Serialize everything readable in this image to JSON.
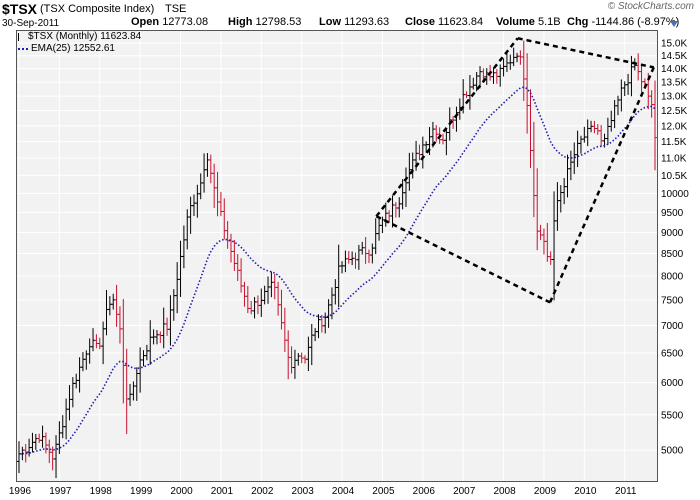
{
  "header": {
    "symbol": "$TSX",
    "name": "(TSX Composite Index)",
    "exchange": "TSE",
    "date": "30-Sep-2011",
    "brand": "© StockCharts.com",
    "open_label": "Open",
    "open": "12773.08",
    "high_label": "High",
    "high": "12798.53",
    "low_label": "Low",
    "low": "11293.63",
    "close_label": "Close",
    "close": "11623.84",
    "volume_label": "Volume",
    "volume": "5.1B",
    "chg_label": "Chg",
    "chg": "-1144.86 (-8.97%)"
  },
  "legend": {
    "price": "$TSX (Monthly) 11623.84",
    "ema": "EMA(25) 12552.61"
  },
  "colors": {
    "up": "#000000",
    "down": "#c8102e",
    "ema": "#1f1fae",
    "plot_bg": "#f2f2f2"
  },
  "chart_data": {
    "type": "ohlc",
    "scale": "log",
    "grid": true,
    "ylim": [
      4600,
      15500
    ],
    "ytick_labels": [
      "15.0K",
      "14.5K",
      "14.0K",
      "13.5K",
      "13.0K",
      "12.5K",
      "12.0K",
      "11.5K",
      "11.0K",
      "10.5K",
      "10000",
      "9500",
      "9000",
      "8500",
      "8000",
      "7500",
      "7000",
      "6500",
      "6000",
      "5500",
      "5000"
    ],
    "yticks": [
      15000,
      14500,
      14000,
      13500,
      13000,
      12500,
      12000,
      11500,
      11000,
      10500,
      10000,
      9500,
      9000,
      8500,
      8000,
      7500,
      7000,
      6500,
      6000,
      5500,
      5000
    ],
    "xticks": [
      "1996",
      "1997",
      "1998",
      "1999",
      "2000",
      "2001",
      "2002",
      "2003",
      "2004",
      "2005",
      "2006",
      "2007",
      "2008",
      "2009",
      "2010",
      "2011"
    ],
    "xrange": [
      1996.0,
      2011.75
    ],
    "anchors": [
      [
        1996.0,
        4950
      ],
      [
        1996.5,
        5200
      ],
      [
        1996.85,
        4900
      ],
      [
        1997.3,
        5900
      ],
      [
        1997.75,
        6700
      ],
      [
        1997.95,
        6550
      ],
      [
        1998.3,
        7650
      ],
      [
        1998.5,
        6900
      ],
      [
        1998.7,
        5600
      ],
      [
        1998.85,
        6000
      ],
      [
        1998.95,
        6300
      ],
      [
        1999.3,
        6800
      ],
      [
        1999.7,
        7000
      ],
      [
        2000.2,
        9500
      ],
      [
        2000.5,
        10300
      ],
      [
        2000.65,
        11200
      ],
      [
        2000.85,
        10000
      ],
      [
        2001.05,
        9200
      ],
      [
        2001.5,
        7800
      ],
      [
        2001.7,
        7300
      ],
      [
        2001.95,
        7500
      ],
      [
        2002.3,
        7800
      ],
      [
        2002.5,
        7000
      ],
      [
        2002.7,
        6300
      ],
      [
        2002.95,
        6500
      ],
      [
        2003.1,
        6400
      ],
      [
        2003.3,
        6900
      ],
      [
        2003.6,
        7200
      ],
      [
        2003.95,
        8200
      ],
      [
        2004.4,
        8500
      ],
      [
        2004.7,
        8600
      ],
      [
        2004.95,
        9200
      ],
      [
        2005.4,
        9800
      ],
      [
        2005.6,
        10500
      ],
      [
        2005.95,
        11300
      ],
      [
        2006.3,
        12000
      ],
      [
        2006.45,
        11500
      ],
      [
        2006.95,
        12900
      ],
      [
        2007.45,
        14000
      ],
      [
        2007.6,
        13700
      ],
      [
        2007.9,
        13800
      ],
      [
        2008.35,
        14700
      ],
      [
        2008.55,
        13500
      ],
      [
        2008.75,
        10000
      ],
      [
        2008.85,
        9000
      ],
      [
        2009.0,
        8800
      ],
      [
        2009.15,
        8200
      ],
      [
        2009.3,
        9700
      ],
      [
        2009.5,
        10300
      ],
      [
        2009.75,
        11100
      ],
      [
        2009.95,
        11600
      ],
      [
        2010.3,
        12000
      ],
      [
        2010.45,
        11300
      ],
      [
        2010.6,
        11900
      ],
      [
        2010.95,
        13300
      ],
      [
        2011.25,
        14100
      ],
      [
        2011.5,
        13300
      ],
      [
        2011.58,
        12900
      ],
      [
        2011.67,
        12700
      ],
      [
        2011.75,
        11624
      ]
    ],
    "ema_last": 12552.61,
    "annotations": [
      {
        "type": "polygon",
        "points": [
          [
            2004.8,
            9450
          ],
          [
            2007.95,
            15100
          ],
          [
            2009.15,
            7450
          ],
          [
            2011.0,
            14050
          ]
        ]
      },
      {
        "type": "line",
        "points": [
          [
            2004.85,
            9400
          ],
          [
            2008.35,
            15200
          ]
        ]
      },
      {
        "type": "line",
        "points": [
          [
            2008.35,
            15200
          ],
          [
            2011.72,
            14050
          ]
        ]
      },
      {
        "type": "line",
        "points": [
          [
            2004.85,
            9400
          ],
          [
            2009.15,
            7450
          ]
        ]
      },
      {
        "type": "line",
        "points": [
          [
            2009.15,
            7450
          ],
          [
            2011.72,
            14050
          ]
        ]
      }
    ]
  }
}
